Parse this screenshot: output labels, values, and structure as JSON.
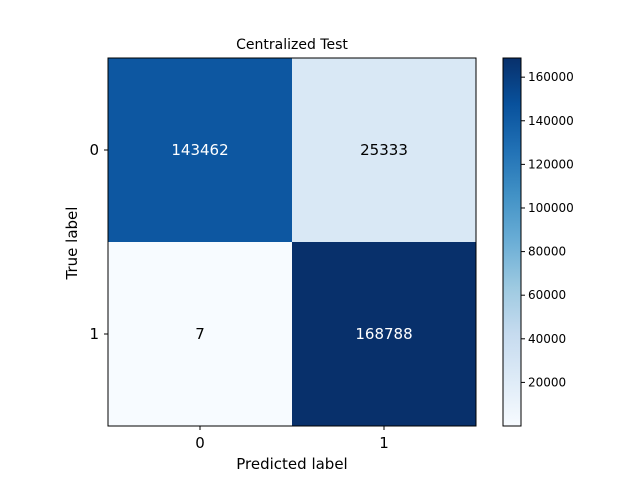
{
  "chart_data": {
    "type": "heatmap",
    "title": "Centralized Test",
    "xlabel": "Predicted label",
    "ylabel": "True label",
    "x_categories": [
      "0",
      "1"
    ],
    "y_categories": [
      "0",
      "1"
    ],
    "values": [
      [
        143462,
        25333
      ],
      [
        7,
        168788
      ]
    ],
    "colormap": "Blues",
    "colorbar": {
      "range": [
        7,
        168788
      ],
      "ticks": [
        20000,
        40000,
        60000,
        80000,
        100000,
        120000,
        140000,
        160000
      ]
    },
    "colors": {
      "cmap_stops": [
        "#f7fbff",
        "#deebf7",
        "#c6dbef",
        "#9ecae1",
        "#6baed6",
        "#4292c6",
        "#2171b5",
        "#08519c",
        "#08306b"
      ],
      "text_dark": "#000000",
      "text_light": "#ffffff"
    }
  }
}
